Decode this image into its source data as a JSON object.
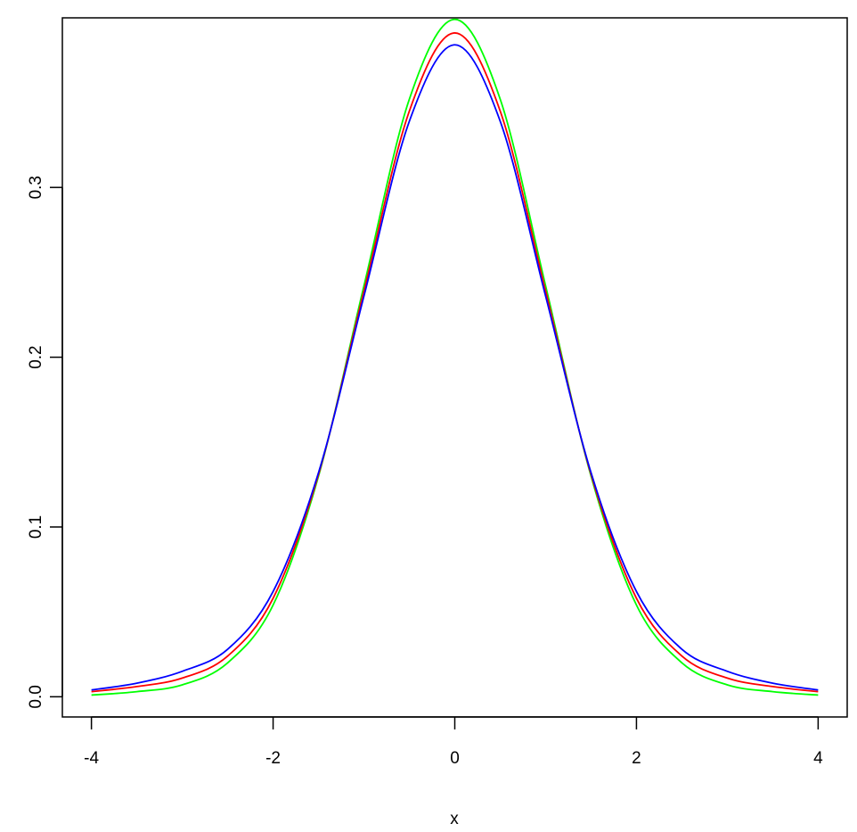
{
  "chart_data": {
    "type": "line",
    "title": "",
    "xlabel": "x",
    "ylabel": "",
    "xlim": [
      -4.32,
      4.32
    ],
    "ylim": [
      -0.0119,
      0.3999
    ],
    "grid": false,
    "legend": "none",
    "x_ticks": [
      {
        "value": -4,
        "label": "-4"
      },
      {
        "value": -2,
        "label": "-2"
      },
      {
        "value": 0,
        "label": "0"
      },
      {
        "value": 2,
        "label": "2"
      },
      {
        "value": 4,
        "label": "4"
      }
    ],
    "y_ticks": [
      {
        "value": 0.0,
        "label": "0.0"
      },
      {
        "value": 0.1,
        "label": "0.1"
      },
      {
        "value": 0.2,
        "label": "0.2"
      },
      {
        "value": 0.3,
        "label": "0.3"
      }
    ],
    "x": [
      -4.0,
      -3.5,
      -3.0,
      -2.5,
      -2.0,
      -1.5,
      -1.0,
      -0.5,
      0.0,
      0.5,
      1.0,
      1.5,
      2.0,
      2.5,
      3.0,
      3.5,
      4.0
    ],
    "series": [
      {
        "color": "#00ff00",
        "values": [
          0.001,
          0.003,
          0.007,
          0.02,
          0.054,
          0.13,
          0.242,
          0.352,
          0.399,
          0.352,
          0.242,
          0.13,
          0.054,
          0.02,
          0.007,
          0.003,
          0.001
        ]
      },
      {
        "color": "#ff0000",
        "values": [
          0.003,
          0.006,
          0.011,
          0.024,
          0.058,
          0.131,
          0.239,
          0.345,
          0.391,
          0.345,
          0.239,
          0.131,
          0.058,
          0.024,
          0.011,
          0.006,
          0.003
        ]
      },
      {
        "color": "#0000ff",
        "values": [
          0.004,
          0.008,
          0.015,
          0.028,
          0.062,
          0.132,
          0.236,
          0.339,
          0.384,
          0.339,
          0.236,
          0.132,
          0.062,
          0.028,
          0.015,
          0.008,
          0.004
        ]
      }
    ]
  }
}
